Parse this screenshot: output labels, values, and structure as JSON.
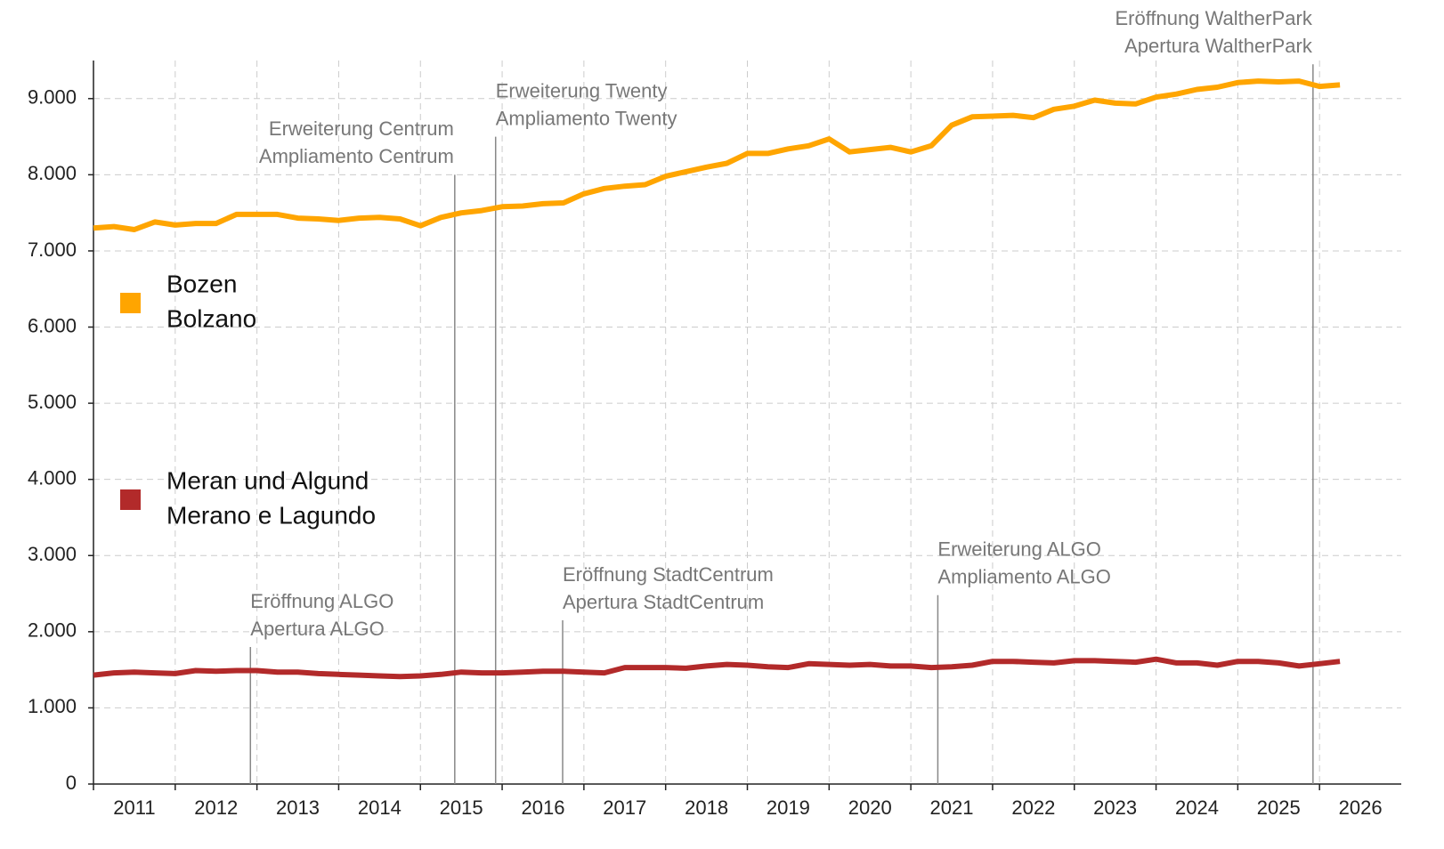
{
  "chart_data": {
    "type": "line",
    "x": [
      2011.0,
      2011.25,
      2011.5,
      2011.75,
      2012.0,
      2012.25,
      2012.5,
      2012.75,
      2013.0,
      2013.25,
      2013.5,
      2013.75,
      2014.0,
      2014.25,
      2014.5,
      2014.75,
      2015.0,
      2015.25,
      2015.5,
      2015.75,
      2016.0,
      2016.25,
      2016.5,
      2016.75,
      2017.0,
      2017.25,
      2017.5,
      2017.75,
      2018.0,
      2018.25,
      2018.5,
      2018.75,
      2019.0,
      2019.25,
      2019.5,
      2019.75,
      2020.0,
      2020.25,
      2020.5,
      2020.75,
      2021.0,
      2021.25,
      2021.5,
      2021.75,
      2022.0,
      2022.25,
      2022.5,
      2022.75,
      2023.0,
      2023.25,
      2023.5,
      2023.75,
      2024.0,
      2024.25,
      2024.5,
      2024.75,
      2025.0,
      2025.25,
      2025.5,
      2025.75,
      2026.0,
      2026.25
    ],
    "series": [
      {
        "name": [
          "Bozen",
          "Bolzano"
        ],
        "color": "#ffa500",
        "values": [
          7300,
          7320,
          7280,
          7380,
          7340,
          7360,
          7360,
          7480,
          7480,
          7480,
          7430,
          7420,
          7400,
          7430,
          7440,
          7420,
          7330,
          7440,
          7500,
          7530,
          7580,
          7590,
          7620,
          7630,
          7750,
          7820,
          7850,
          7870,
          7980,
          8040,
          8100,
          8150,
          8280,
          8280,
          8340,
          8380,
          8470,
          8300,
          8330,
          8360,
          8300,
          8380,
          8650,
          8760,
          8770,
          8780,
          8750,
          8860,
          8900,
          8980,
          8940,
          8930,
          9020,
          9060,
          9120,
          9150,
          9210,
          9230,
          9220,
          9230,
          9160,
          9180
        ]
      },
      {
        "name": [
          "Meran und Algund",
          "Merano e Lagundo"
        ],
        "color": "#b22a2a",
        "values": [
          1430,
          1460,
          1470,
          1460,
          1450,
          1490,
          1480,
          1490,
          1490,
          1470,
          1470,
          1450,
          1440,
          1430,
          1420,
          1410,
          1420,
          1440,
          1470,
          1460,
          1460,
          1470,
          1480,
          1480,
          1470,
          1460,
          1530,
          1530,
          1530,
          1520,
          1550,
          1570,
          1560,
          1540,
          1530,
          1580,
          1570,
          1560,
          1570,
          1550,
          1550,
          1530,
          1540,
          1560,
          1610,
          1610,
          1600,
          1590,
          1620,
          1620,
          1610,
          1600,
          1640,
          1590,
          1590,
          1560,
          1610,
          1610,
          1590,
          1550,
          1580,
          1610
        ]
      }
    ],
    "xlim": [
      2011,
      2027
    ],
    "xticks": [
      2011,
      2012,
      2013,
      2014,
      2015,
      2016,
      2017,
      2018,
      2019,
      2020,
      2021,
      2022,
      2023,
      2024,
      2025,
      2026
    ],
    "ylim": [
      0,
      9500
    ],
    "yticks": [
      0,
      {
        "value": 1000,
        "label": "1.000"
      },
      {
        "value": 2000,
        "label": "2.000"
      },
      {
        "value": 3000,
        "label": "3.000"
      },
      {
        "value": 4000,
        "label": "4.000"
      },
      {
        "value": 5000,
        "label": "5.000"
      },
      {
        "value": 6000,
        "label": "6.000"
      },
      {
        "value": 7000,
        "label": "7.000"
      },
      {
        "value": 8000,
        "label": "8.000"
      },
      {
        "value": 9000,
        "label": "9.000"
      }
    ],
    "grid": true,
    "legend": "left",
    "annotations": [
      {
        "x": 2012.92,
        "y": 1800,
        "align": "left",
        "lines": [
          "Eröffnung ALGO",
          "Apertura ALGO"
        ]
      },
      {
        "x": 2015.42,
        "y": 8000,
        "align": "right",
        "lines": [
          "Erweiterung Centrum",
          "Ampliamento Centrum"
        ]
      },
      {
        "x": 2015.92,
        "y": 8500,
        "align": "left",
        "lines": [
          "Erweiterung Twenty",
          "Ampliamento Twenty"
        ]
      },
      {
        "x": 2016.74,
        "y": 2150,
        "align": "left",
        "lines": [
          "Eröffnung StadtCentrum",
          "Apertura StadtCentrum"
        ]
      },
      {
        "x": 2021.33,
        "y": 2480,
        "align": "left",
        "lines": [
          "Erweiterung ALGO",
          "Ampliamento ALGO"
        ]
      },
      {
        "x": 2025.92,
        "y": 9450,
        "align": "right",
        "lines": [
          "Eröffnung WaltherPark",
          "Apertura WaltherPark"
        ]
      }
    ]
  }
}
